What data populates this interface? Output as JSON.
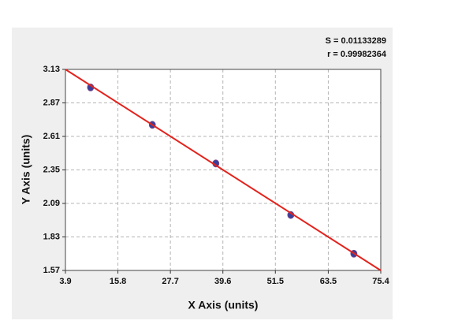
{
  "chart_data": {
    "type": "scatter",
    "xlabel": "X Axis (units)",
    "ylabel": "Y Axis (units)",
    "annotations": [
      "S = 0.01133289",
      "r = 0.99982364"
    ],
    "x": [
      9.6,
      23.6,
      38.0,
      55.0,
      69.3
    ],
    "values": [
      2.99,
      2.7,
      2.4,
      2.0,
      1.7
    ],
    "color": "#3a3f9c",
    "fit": {
      "x": [
        3.9,
        75.4
      ],
      "y": [
        3.13,
        1.57
      ],
      "color": "#e3231d"
    },
    "xlim": [
      3.9,
      75.4
    ],
    "ylim": [
      1.57,
      3.13
    ],
    "xticks": [
      3.9,
      15.8,
      27.7,
      39.6,
      51.5,
      63.5,
      75.4
    ],
    "yticks": [
      1.57,
      1.83,
      2.09,
      2.35,
      2.61,
      2.87,
      3.13
    ],
    "grid": true
  }
}
